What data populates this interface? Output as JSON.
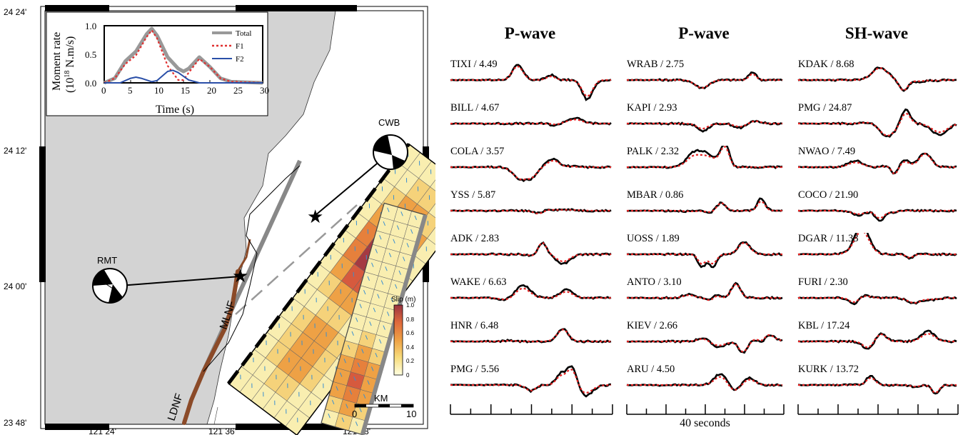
{
  "map": {
    "lat_labels": [
      "24 24'",
      "24 12'",
      "24 00'",
      "23 48'"
    ],
    "lon_labels": [
      "121 24'",
      "121 36'",
      "121 48'"
    ],
    "station_cwb": "CWB",
    "station_rmt": "RMT",
    "fault_mlnf": "MLNF",
    "fault_ldnf": "LDNF",
    "scale_unit": "KM",
    "scale_ticks": [
      "0",
      "10"
    ],
    "colorbar": {
      "title": "Slip (m)",
      "ticks": [
        "1.0",
        "0.8",
        "0.6",
        "0.4",
        "0.2",
        "0"
      ],
      "colors": [
        "#ffffe0",
        "#fbe58a",
        "#f2b84a",
        "#e8843a",
        "#d6553f",
        "#a33a40"
      ]
    },
    "land_color": "#d3d3d3",
    "slip_arrow_color": "#3a8fd0"
  },
  "inset": {
    "ylabel_line1": "Moment rate",
    "ylabel_line2_a": "(10",
    "ylabel_line2_sup": "18",
    "ylabel_line2_b": " N.m/s)",
    "xlabel": "Time (s)",
    "legend": [
      "Total",
      "F1",
      "F2"
    ],
    "x_ticks": [
      "0",
      "5",
      "10",
      "15",
      "20",
      "25",
      "30"
    ],
    "y_ticks": [
      "0.0",
      "0.5",
      "1.0"
    ]
  },
  "chart_data": {
    "type": "line",
    "xlabel": "Time (s)",
    "ylabel": "Moment rate (10^18 N.m/s)",
    "xlim": [
      0,
      30
    ],
    "ylim": [
      0,
      1.0
    ],
    "series": [
      {
        "name": "Total",
        "color": "#999999",
        "x": [
          0,
          2,
          4,
          6,
          8,
          9,
          10,
          12,
          14,
          15,
          16,
          18,
          20,
          22,
          24,
          30
        ],
        "values": [
          0,
          0.08,
          0.38,
          0.55,
          0.85,
          0.95,
          0.83,
          0.45,
          0.25,
          0.2,
          0.25,
          0.45,
          0.28,
          0.08,
          0.02,
          0
        ]
      },
      {
        "name": "F1",
        "color": "#e03030",
        "x": [
          0,
          2,
          4,
          6,
          8,
          9,
          10,
          12,
          14,
          15,
          16,
          18,
          20,
          22,
          24,
          30
        ],
        "values": [
          0,
          0.08,
          0.33,
          0.48,
          0.8,
          0.92,
          0.78,
          0.3,
          0.05,
          0.05,
          0.18,
          0.42,
          0.28,
          0.08,
          0.02,
          0
        ]
      },
      {
        "name": "F2",
        "color": "#2a4fa8",
        "x": [
          0,
          3,
          5,
          6,
          7,
          9,
          10,
          12,
          13,
          14,
          16,
          18,
          30
        ],
        "values": [
          0,
          0,
          0.08,
          0.1,
          0.08,
          0.02,
          0.04,
          0.2,
          0.22,
          0.18,
          0.05,
          0,
          0
        ]
      }
    ]
  },
  "panels": [
    {
      "title": "P-wave",
      "traces": [
        "TIXI / 4.49",
        "BILL / 4.67",
        "COLA / 3.57",
        "YSS / 5.87",
        "ADK / 2.83",
        "WAKE / 6.63",
        "HNR / 6.48",
        "PMG / 5.56"
      ]
    },
    {
      "title": "P-wave",
      "traces": [
        "WRAB / 2.75",
        "KAPI / 2.93",
        "PALK / 2.32",
        "MBAR / 0.86",
        "UOSS / 1.89",
        "ANTO / 3.10",
        "KIEV / 2.66",
        "ARU / 4.50"
      ]
    },
    {
      "title": "SH-wave",
      "traces": [
        "KDAK / 8.68",
        "PMG / 24.87",
        "NWAO / 7.49",
        "COCO / 21.90",
        "DGAR / 11.33",
        "FURI / 2.30",
        "KBL / 17.24",
        "KURK / 13.72"
      ]
    }
  ],
  "time_axis_label": "40 seconds",
  "colors": {
    "observed": "#000000",
    "synthetic": "#e02020"
  }
}
